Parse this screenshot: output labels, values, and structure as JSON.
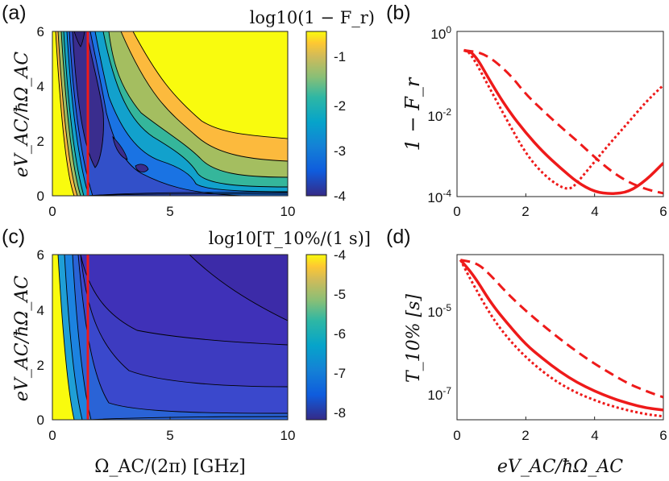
{
  "chart_data": [
    {
      "type": "heatmap",
      "panel": "(a)",
      "colorbar_title": "log10(1 − F_r)",
      "xlabel": "",
      "ylabel": "eV_AC/ħΩ_AC",
      "xlim": [
        0,
        10
      ],
      "ylim": [
        0,
        6
      ],
      "xticks": [
        "0",
        "5",
        "10"
      ],
      "yticks": [
        "0",
        "2",
        "4",
        "6"
      ],
      "colorbar_range": [
        -4.2,
        -0.2
      ],
      "colorbar_ticks": [
        "-1",
        "-2",
        "-3",
        "-4"
      ],
      "marker_line_x": 1.6
    },
    {
      "type": "line",
      "panel": "(b)",
      "ylabel": "1 − F_r",
      "xlabel": "",
      "xlim": [
        0,
        6
      ],
      "ylim": [
        0.0001,
        1
      ],
      "yscale": "log",
      "xticks": [
        "0",
        "2",
        "4",
        "6"
      ],
      "series": [
        {
          "name": "solid",
          "x": [
            0.2,
            0.5,
            1.0,
            1.5,
            2.0,
            2.5,
            3.0,
            3.5,
            4.0,
            4.5,
            5.0,
            5.5,
            6.0
          ],
          "y": [
            0.35,
            0.3,
            0.055,
            0.012,
            0.0035,
            0.0012,
            0.0005,
            0.00022,
            0.00013,
            0.000115,
            0.00013,
            0.00025,
            0.00065
          ]
        },
        {
          "name": "dashed",
          "x": [
            0.2,
            0.8,
            1.5,
            2.0,
            2.5,
            3.0,
            3.5,
            4.0,
            4.5,
            5.0,
            5.5,
            6.0
          ],
          "y": [
            0.35,
            0.3,
            0.1,
            0.03,
            0.012,
            0.005,
            0.0022,
            0.0009,
            0.0004,
            0.00022,
            0.00015,
            0.00012
          ]
        },
        {
          "name": "dotted",
          "x": [
            0.2,
            0.4,
            1.0,
            1.5,
            2.0,
            2.5,
            3.0,
            3.3,
            3.5,
            4.0,
            4.5,
            5.0,
            5.5,
            6.0
          ],
          "y": [
            0.35,
            0.3,
            0.035,
            0.006,
            0.0011,
            0.00035,
            0.00017,
            0.00015,
            0.00022,
            0.0007,
            0.0022,
            0.0065,
            0.02,
            0.05
          ]
        }
      ]
    },
    {
      "type": "heatmap",
      "panel": "(c)",
      "colorbar_title": "log10[T_10%/(1 s)]",
      "xlabel": "Ω_AC/(2π) [GHz]",
      "ylabel": "eV_AC/ħΩ_AC",
      "xlim": [
        0,
        10
      ],
      "ylim": [
        0,
        6
      ],
      "xticks": [
        "0",
        "5",
        "10"
      ],
      "yticks": [
        "0",
        "2",
        "4",
        "6"
      ],
      "colorbar_range": [
        -8.3,
        -4.0
      ],
      "colorbar_ticks": [
        "-4",
        "-5",
        "-6",
        "-7",
        "-8"
      ],
      "marker_line_x": 1.6
    },
    {
      "type": "line",
      "panel": "(d)",
      "ylabel": "T_10% [s]",
      "xlabel": "eV_AC/ħΩ_AC",
      "xlim": [
        0,
        6
      ],
      "ylim": [
        2e-08,
        0.00016
      ],
      "yscale": "log",
      "xticks": [
        "0",
        "2",
        "4",
        "6"
      ],
      "ytick_values": [
        1e-05,
        1e-07
      ],
      "series": [
        {
          "name": "solid",
          "x": [
            0.1,
            0.5,
            1.0,
            1.5,
            2.0,
            2.5,
            3.0,
            3.5,
            4.0,
            4.5,
            5.0,
            5.5,
            6.0
          ],
          "y": [
            0.00012,
            5e-05,
            1.1e-05,
            3.5e-06,
            1.2e-06,
            5.5e-07,
            2.7e-07,
            1.5e-07,
            9.5e-08,
            6.5e-08,
            4.8e-08,
            3.8e-08,
            3.4e-08
          ]
        },
        {
          "name": "dashed",
          "x": [
            0.1,
            0.6,
            1.0,
            1.5,
            2.0,
            2.5,
            3.0,
            3.5,
            4.0,
            4.5,
            5.0,
            5.5,
            6.0
          ],
          "y": [
            0.00012,
            0.0001,
            5e-05,
            1.8e-05,
            7.5e-06,
            3.4e-06,
            1.6e-06,
            8e-07,
            4.2e-07,
            2.4e-07,
            1.4e-07,
            9.5e-08,
            6.8e-08
          ]
        },
        {
          "name": "dotted",
          "x": [
            0.1,
            0.4,
            1.0,
            1.5,
            2.0,
            2.5,
            3.0,
            3.5,
            4.0,
            4.5,
            5.0,
            5.5,
            6.0
          ],
          "y": [
            0.00012,
            4e-05,
            5.5e-06,
            1.6e-06,
            6e-07,
            2.7e-07,
            1.4e-07,
            8.5e-08,
            5.8e-08,
            4.2e-08,
            3.3e-08,
            2.7e-08,
            2.4e-08
          ]
        }
      ]
    }
  ]
}
